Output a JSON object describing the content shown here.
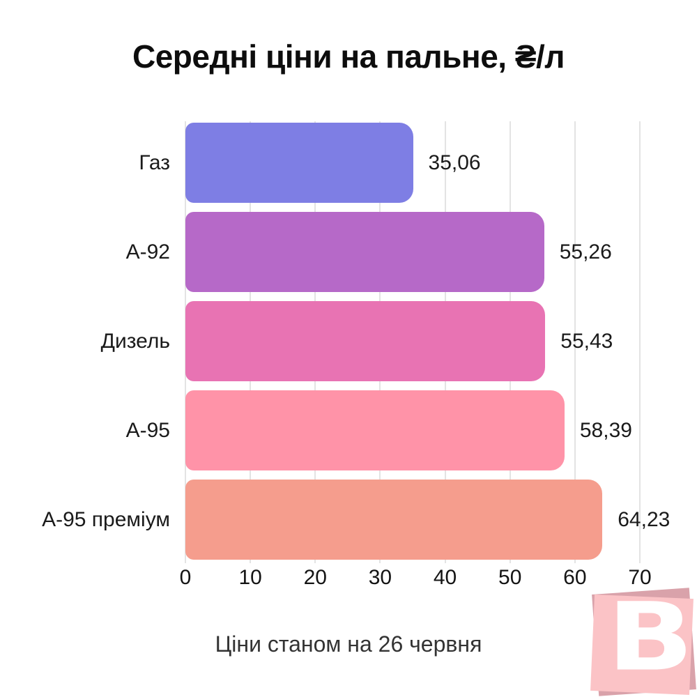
{
  "chart_data": {
    "type": "bar",
    "orientation": "horizontal",
    "title": "Середні ціни на пальне, ₴/л",
    "categories": [
      "Газ",
      "А-92",
      "Дизель",
      "А-95",
      "А-95 преміум"
    ],
    "values": [
      35.06,
      55.26,
      55.43,
      58.39,
      64.23
    ],
    "value_labels": [
      "35,06",
      "55,26",
      "55,43",
      "58,39",
      "64,23"
    ],
    "bar_colors": [
      "#7e7ee4",
      "#b669c8",
      "#e873b3",
      "#ff93a8",
      "#f59d8d"
    ],
    "xlim": [
      0,
      70
    ],
    "x_ticks": [
      0,
      10,
      20,
      30,
      40,
      50,
      60,
      70
    ],
    "xlabel": "",
    "ylabel": "",
    "grid": "vertical",
    "gridline_color": "#e3e3e3",
    "legend": "none"
  },
  "caption": "Ціни станом на 26 червня",
  "logo": {
    "letter": "B",
    "front_color": "#fbc3c6",
    "back_color": "#d9a2aa"
  },
  "colors": {
    "background": "#ffffff",
    "title_text": "#0d0d0d",
    "label_text": "#1a1a1a",
    "caption_text": "#333333"
  }
}
